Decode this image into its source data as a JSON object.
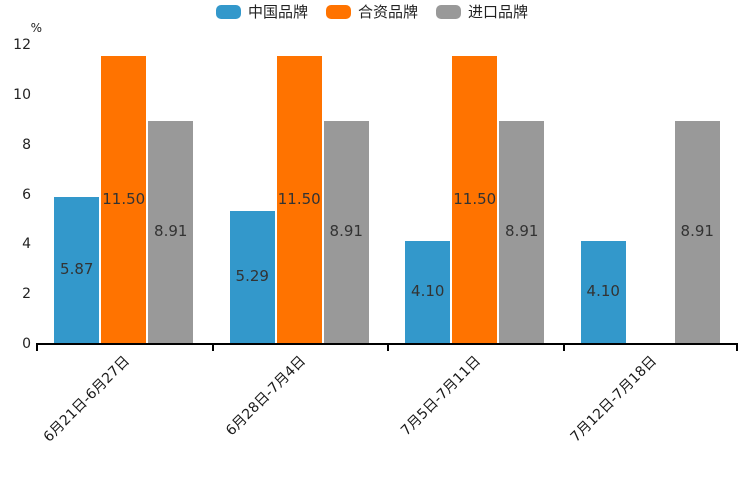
{
  "chart_data": {
    "type": "bar",
    "title": "",
    "ylabel": "%",
    "xlabel": "",
    "ylim": [
      0,
      12
    ],
    "yticks": [
      0,
      2,
      4,
      6,
      8,
      10,
      12
    ],
    "grid": false,
    "legend_position": "top",
    "categories": [
      "6月21日-6月27日",
      "6月28日-7月4日",
      "7月5日-7月11日",
      "7月12日-7月18日"
    ],
    "series": [
      {
        "name": "中国品牌",
        "color": "#3398cb",
        "values": [
          5.87,
          5.29,
          4.1,
          4.1
        ],
        "labels": [
          "5.87",
          "5.29",
          "4.10",
          "4.10"
        ]
      },
      {
        "name": "合资品牌",
        "color": "#ff7300",
        "values": [
          11.5,
          11.5,
          11.5,
          null
        ],
        "labels": [
          "11.50",
          "11.50",
          "11.50",
          ""
        ]
      },
      {
        "name": "进口品牌",
        "color": "#999999",
        "values": [
          8.91,
          8.91,
          8.91,
          8.91
        ],
        "labels": [
          "8.91",
          "8.91",
          "8.91",
          "8.91"
        ]
      }
    ],
    "colors": {
      "axis": "#000000",
      "bar_value_label": "#333333",
      "tick_label": "#222222",
      "background": "#ffffff"
    }
  }
}
